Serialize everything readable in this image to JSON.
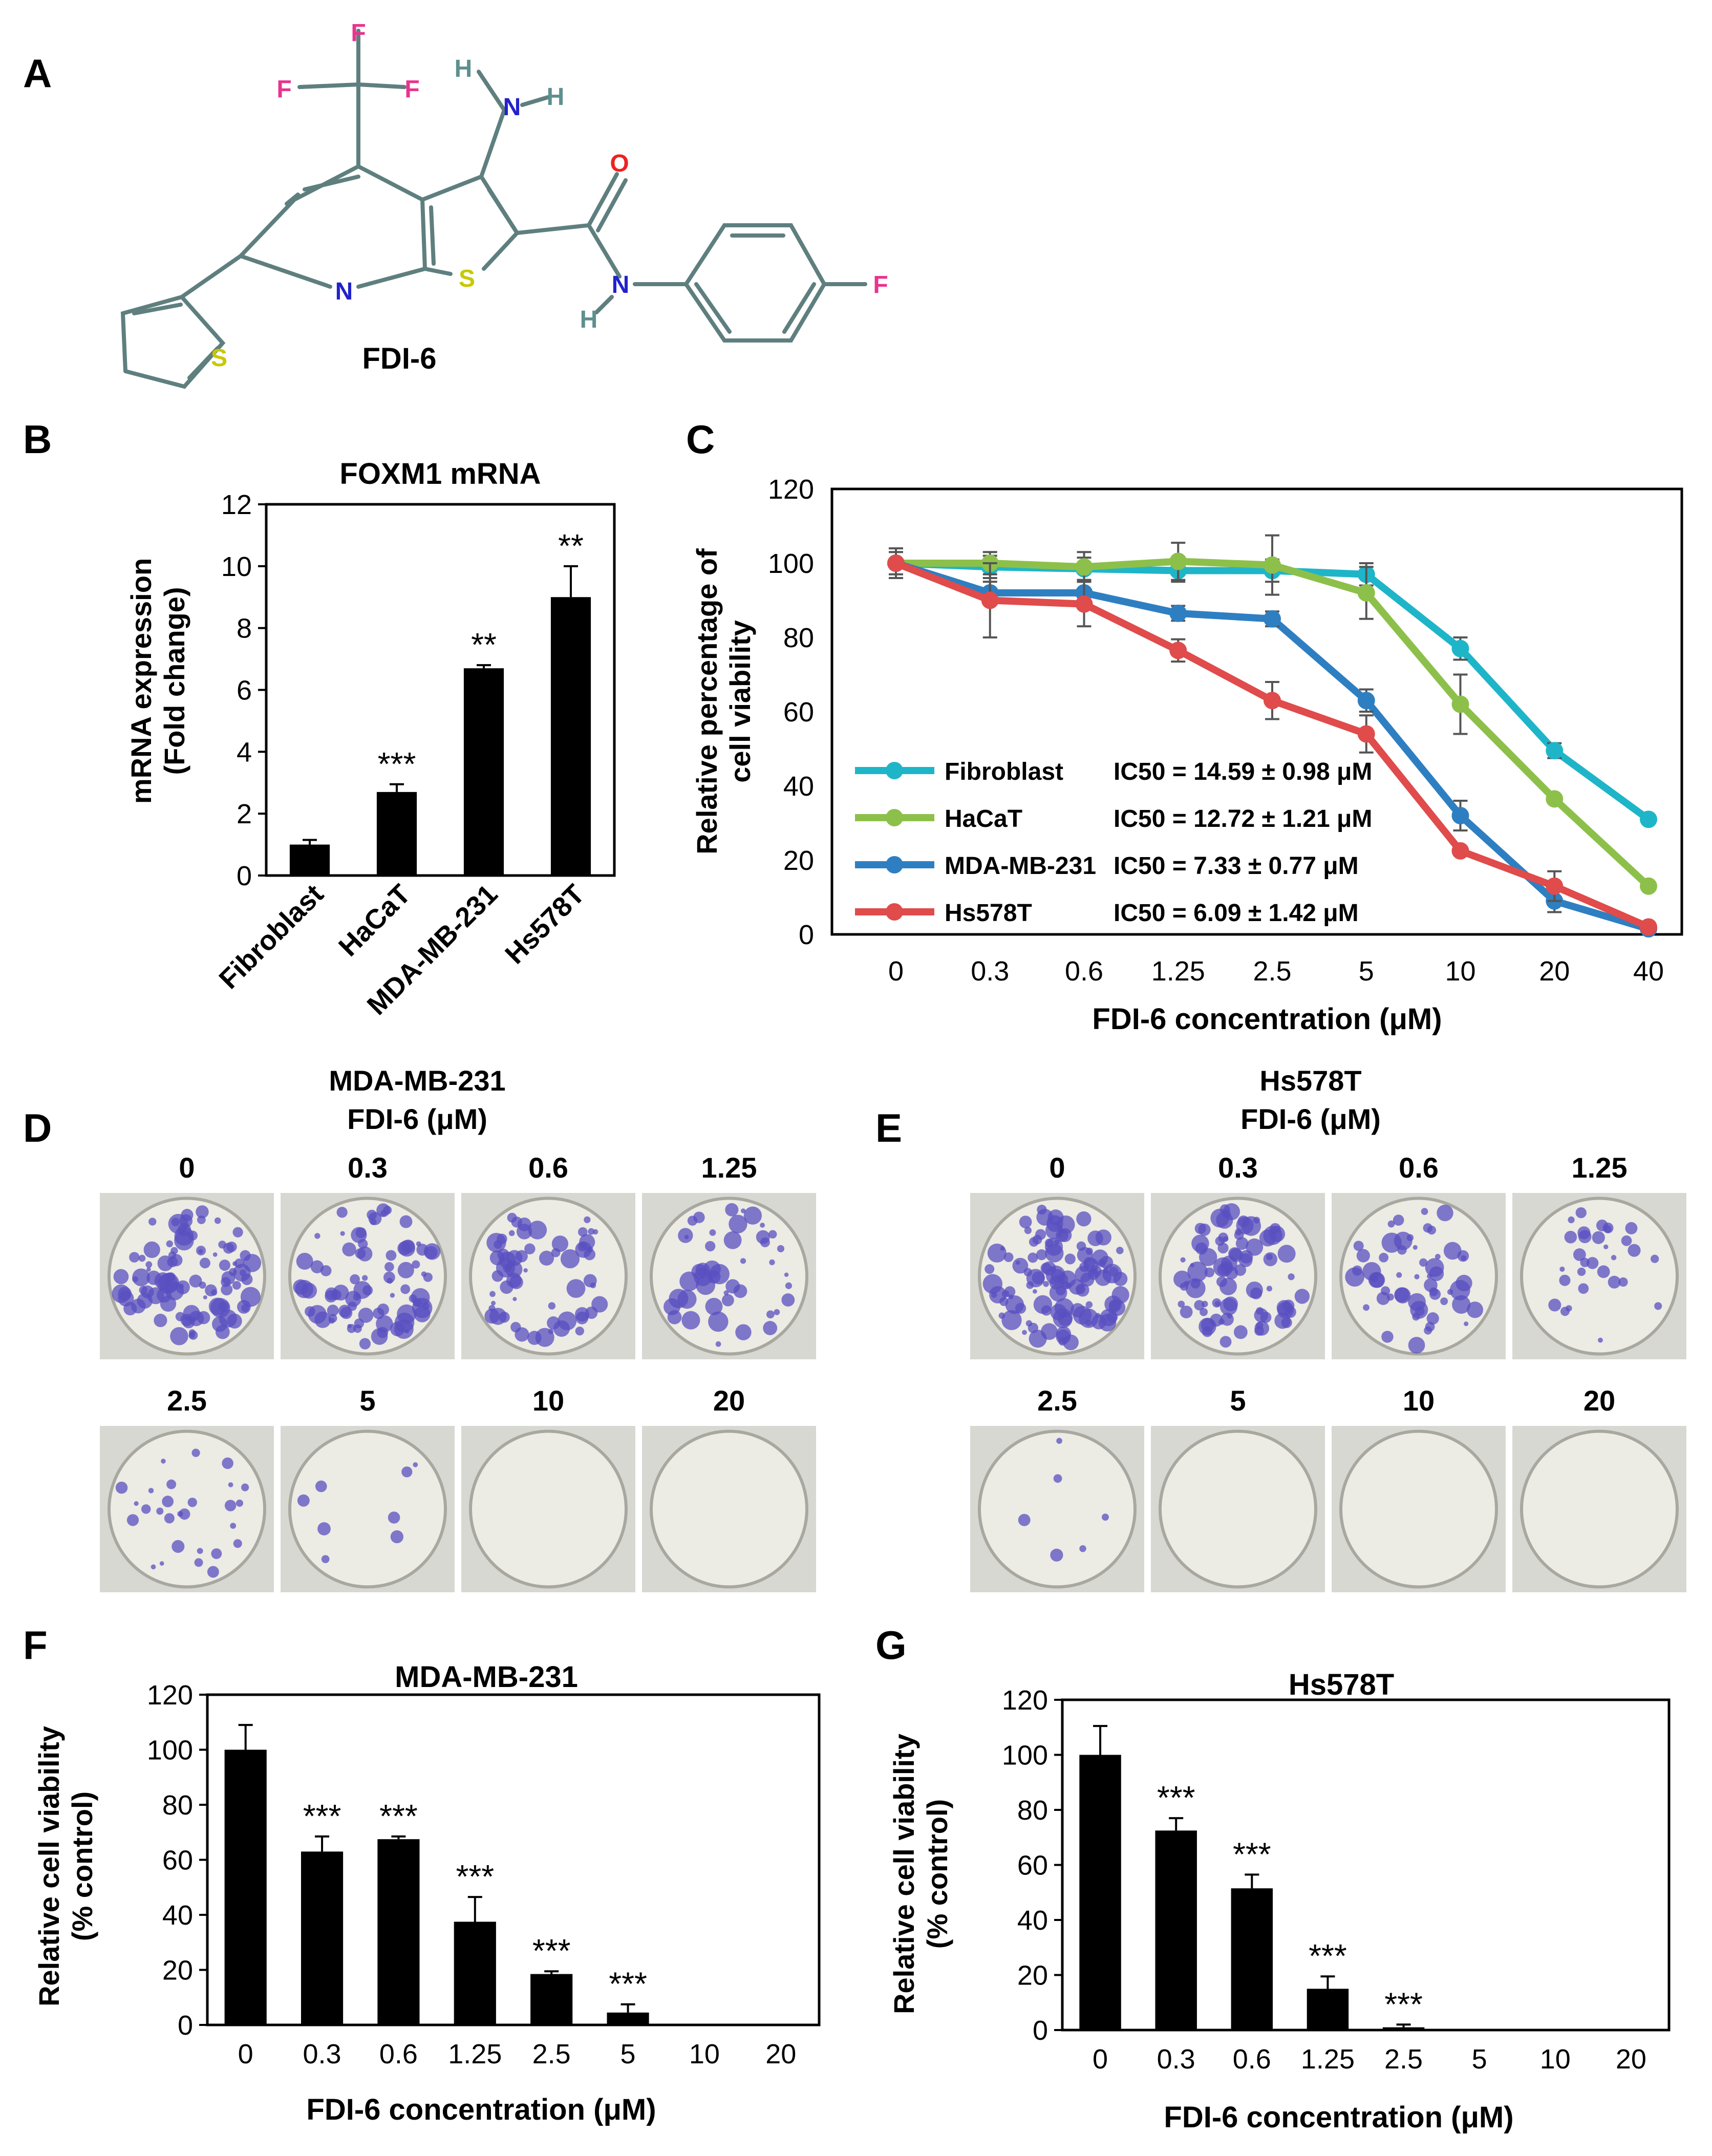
{
  "panel_labels": {
    "a": "A",
    "b": "B",
    "c": "C",
    "d": "D",
    "e": "E",
    "f": "F",
    "g": "G"
  },
  "structure": {
    "name": "FDI-6",
    "atoms": {
      "F": "F",
      "H": "H",
      "N": "N",
      "O": "O",
      "S": "S"
    }
  },
  "colonies": {
    "d_title": "MDA-MB-231",
    "e_title": "Hs578T",
    "treatment": "FDI-6 (μM)",
    "doses": [
      "0",
      "0.3",
      "0.6",
      "1.25",
      "2.5",
      "5",
      "10",
      "20"
    ]
  },
  "colors": {
    "fibroblast": "#1fb5c8",
    "hacat": "#8dc04a",
    "mda": "#2e7fc2",
    "hs578t": "#e04b4b",
    "well_stain": "#5a4fc0",
    "bar": "#000000"
  },
  "chart_data": [
    {
      "id": "B",
      "type": "bar",
      "title": "FOXM1 mRNA",
      "ylabel": [
        "mRNA expression",
        "(Fold change)"
      ],
      "ylim": [
        0,
        12
      ],
      "yticks": [
        0,
        2,
        4,
        6,
        8,
        10,
        12
      ],
      "categories": [
        "Fibroblast",
        "HaCaT",
        "MDA-MB-231",
        "Hs578T"
      ],
      "values": [
        1.0,
        2.7,
        6.7,
        9.0
      ],
      "errors": [
        0.15,
        0.25,
        0.1,
        1.0
      ],
      "significance": [
        "",
        "***",
        "**",
        "**"
      ]
    },
    {
      "id": "C",
      "type": "line",
      "xlabel": "FDI-6 concentration (μM)",
      "ylabel": [
        "Relative percentage of",
        "cell viability"
      ],
      "ylim": [
        0,
        120
      ],
      "yticks": [
        0,
        20,
        40,
        60,
        80,
        100,
        120
      ],
      "x": [
        "0",
        "0.3",
        "0.6",
        "1.25",
        "2.5",
        "5",
        "10",
        "20",
        "40"
      ],
      "legend_position": "lower-left",
      "series": [
        {
          "name": "Fibroblast",
          "ic50": "IC50 = 14.59 ± 0.98  μM",
          "color_key": "fibroblast",
          "values": [
            100,
            99,
            98.5,
            98,
            98,
            97,
            77,
            49.5,
            31
          ],
          "errors": [
            4,
            3,
            3,
            3,
            3,
            3,
            3,
            2,
            1
          ]
        },
        {
          "name": "HaCaT",
          "ic50": "IC50 = 12.72 ± 1.21  μM",
          "color_key": "hacat",
          "values": [
            100,
            100,
            99,
            100.5,
            99.5,
            92,
            62,
            36.5,
            13
          ],
          "errors": [
            3,
            3,
            4,
            5,
            8,
            7,
            8,
            1,
            1
          ]
        },
        {
          "name": "MDA-MB-231",
          "ic50": "IC50 = 7.33 ± 0.77  μM",
          "color_key": "mda",
          "values": [
            100,
            92,
            92,
            86.5,
            85,
            63,
            32,
            9,
            1.5
          ],
          "errors": [
            4,
            3,
            3,
            2,
            2,
            3,
            4,
            3,
            1
          ]
        },
        {
          "name": "Hs578T",
          "ic50": "IC50 = 6.09 ± 1.42  μM",
          "color_key": "hs578t",
          "values": [
            100,
            90,
            89,
            76.5,
            63,
            54,
            22.5,
            13,
            2
          ],
          "errors": [
            4,
            10,
            6,
            3,
            5,
            5,
            1,
            4,
            1
          ]
        }
      ]
    },
    {
      "id": "F",
      "type": "bar",
      "title": "MDA-MB-231",
      "xlabel": "FDI-6 concentration (μM)",
      "ylabel": [
        "Relative cell viability",
        "(% control)"
      ],
      "ylim": [
        0,
        120
      ],
      "yticks": [
        0,
        20,
        40,
        60,
        80,
        100,
        120
      ],
      "categories": [
        "0",
        "0.3",
        "0.6",
        "1.25",
        "2.5",
        "5",
        "10",
        "20"
      ],
      "values": [
        100,
        63,
        67.5,
        37.5,
        18.5,
        4.5,
        0,
        0
      ],
      "errors": [
        9,
        5.5,
        1,
        9,
        1,
        3,
        0,
        0
      ],
      "significance": [
        "",
        "***",
        "***",
        "***",
        "***",
        "***",
        "",
        ""
      ]
    },
    {
      "id": "G",
      "type": "bar",
      "title": "Hs578T",
      "xlabel": "FDI-6 concentration (μM)",
      "ylabel": [
        "Relative cell viability",
        "(% control)"
      ],
      "ylim": [
        0,
        120
      ],
      "yticks": [
        0,
        20,
        40,
        60,
        80,
        100,
        120
      ],
      "categories": [
        "0",
        "0.3",
        "0.6",
        "1.25",
        "2.5",
        "5",
        "10",
        "20"
      ],
      "values": [
        100,
        72.5,
        51.5,
        15,
        1,
        0,
        0,
        0
      ],
      "errors": [
        10.5,
        4.5,
        5,
        4.5,
        1,
        0,
        0,
        0
      ],
      "significance": [
        "",
        "***",
        "***",
        "***",
        "***",
        "",
        "",
        ""
      ]
    }
  ]
}
